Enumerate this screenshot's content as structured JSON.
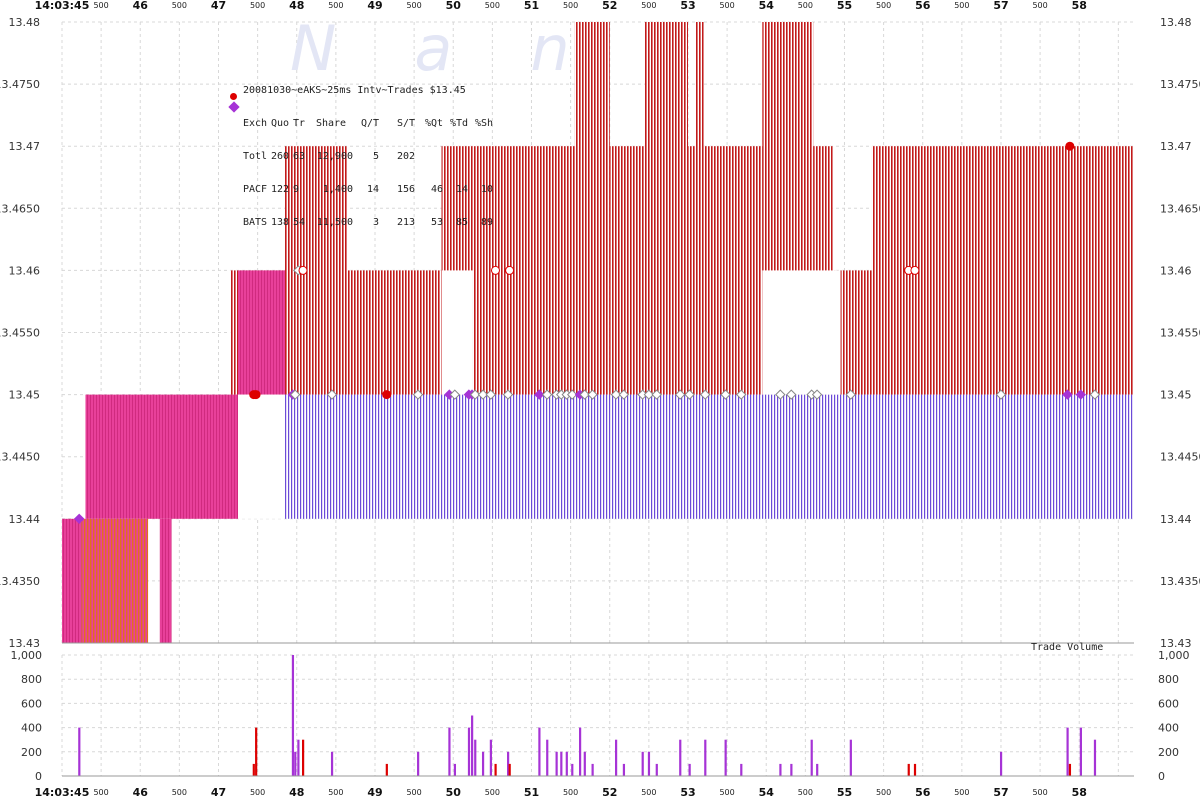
{
  "colors": {
    "pacf": "#dd0000",
    "bats": "#a633d6",
    "nbbo_overlap": "#e0338a",
    "ask_fill": "#c21a1a",
    "bid_fill": "#6b4ad8",
    "grid": "#d8d8d8",
    "watermark": "#e3e6f5"
  },
  "chart_data": [
    {
      "type": "step-area",
      "name": "quote_chart",
      "title": "20081030~eAKS~25ms Intv~Trades $13.45",
      "watermark": "Nanex",
      "ylim": [
        13.43,
        13.48
      ],
      "y_ticks": [
        "13.43",
        "13.4350",
        "13.44",
        "13.4450",
        "13.45",
        "13.4550",
        "13.46",
        "13.4650",
        "13.47",
        "13.4750",
        "13.48"
      ],
      "x_time_start": "14:03:45",
      "x_major_labels": [
        "14:03:45",
        "46",
        "47",
        "48",
        "49",
        "50",
        "51",
        "52",
        "53",
        "54",
        "55",
        "56",
        "57",
        "58"
      ],
      "x_minor_label": "500",
      "xlim_seconds": [
        0,
        13.7
      ],
      "stats_table": {
        "header": [
          "Exch",
          "Quo",
          "Tr",
          "Share",
          "Q/T",
          "S/T",
          "%Qt",
          "%Td",
          "%Sh"
        ],
        "rows": [
          {
            "exch": "Totl",
            "quo": "260",
            "tr": "63",
            "share": "12,900",
            "qt": "5",
            "st": "202",
            "pqt": "",
            "ptd": "",
            "psh": ""
          },
          {
            "exch": "PACF",
            "quo": "122",
            "tr": "9",
            "share": "1,400",
            "qt": "14",
            "st": "156",
            "pqt": "46",
            "ptd": "14",
            "psh": "10"
          },
          {
            "exch": "BATS",
            "quo": "138",
            "tr": "54",
            "share": "11,500",
            "qt": "3",
            "st": "213",
            "pqt": "53",
            "ptd": "85",
            "psh": "89"
          }
        ]
      },
      "ask_segments": [
        {
          "x0": 0.0,
          "x1": 0.25,
          "level": 13.44
        },
        {
          "x0": 0.25,
          "x1": 1.2,
          "level": 13.44
        },
        {
          "x0": 1.2,
          "x1": 1.4,
          "level": 13.44
        },
        {
          "x0": 2.15,
          "x1": 2.85,
          "level": 13.46
        },
        {
          "x0": 2.85,
          "x1": 3.65,
          "level": 13.47
        },
        {
          "x0": 3.65,
          "x1": 4.85,
          "level": 13.46
        },
        {
          "x0": 4.85,
          "x1": 5.25,
          "level": 13.47
        },
        {
          "x0": 5.25,
          "x1": 5.55,
          "level": 13.47
        },
        {
          "x0": 5.55,
          "x1": 6.0,
          "level": 13.47
        },
        {
          "x0": 6.0,
          "x1": 6.55,
          "level": 13.47
        },
        {
          "x0": 6.55,
          "x1": 7.0,
          "level": 13.48
        },
        {
          "x0": 7.0,
          "x1": 7.45,
          "level": 13.47
        },
        {
          "x0": 7.45,
          "x1": 8.0,
          "level": 13.48
        },
        {
          "x0": 8.0,
          "x1": 8.1,
          "level": 13.47
        },
        {
          "x0": 8.1,
          "x1": 8.2,
          "level": 13.48
        },
        {
          "x0": 8.2,
          "x1": 8.95,
          "level": 13.47
        },
        {
          "x0": 8.95,
          "x1": 9.6,
          "level": 13.48
        },
        {
          "x0": 9.6,
          "x1": 9.85,
          "level": 13.47
        },
        {
          "x0": 9.85,
          "x1": 10.35,
          "level": 13.46
        },
        {
          "x0": 10.35,
          "x1": 13.7,
          "level": 13.47
        }
      ],
      "bid_segments": [
        {
          "x0": 0.0,
          "x1": 0.25,
          "level": 13.43
        },
        {
          "x0": 0.25,
          "x1": 1.2,
          "level": 13.43
        },
        {
          "x0": 1.2,
          "x1": 1.4,
          "level": 13.43
        },
        {
          "x0": 2.15,
          "x1": 2.85,
          "level": 13.45
        },
        {
          "x0": 2.85,
          "x1": 13.7,
          "level": 13.44
        }
      ],
      "bid_top_segments": [
        {
          "x0": 0.25,
          "x1": 2.25,
          "level": 13.45
        },
        {
          "x0": 2.85,
          "x1": 13.7,
          "level": 13.45
        }
      ],
      "overlap_regions": [
        {
          "x0": 0.0,
          "x1": 0.25,
          "y0": 13.43,
          "y1": 13.44
        },
        {
          "x0": 0.3,
          "x1": 2.25,
          "y0": 13.44,
          "y1": 13.45
        },
        {
          "x0": 1.25,
          "x1": 1.4,
          "y0": 13.43,
          "y1": 13.44
        },
        {
          "x0": 2.25,
          "x1": 2.85,
          "y0": 13.45,
          "y1": 13.46
        }
      ],
      "ask_gaps": [
        {
          "x0": 4.85,
          "x1": 5.25,
          "y0": 13.45,
          "y1": 13.46
        },
        {
          "x0": 8.95,
          "x1": 9.95,
          "y0": 13.45,
          "y1": 13.46
        },
        {
          "x0": 2.25,
          "x1": 2.85,
          "y0": 13.44,
          "y1": 13.45
        }
      ],
      "trades": [
        {
          "t": 0.22,
          "price": 13.44,
          "exch": "BATS",
          "shares": 400
        },
        {
          "t": 2.45,
          "price": 13.45,
          "exch": "PACF",
          "shares": 100
        },
        {
          "t": 2.48,
          "price": 13.45,
          "exch": "PACF",
          "shares": 400
        },
        {
          "t": 2.95,
          "price": 13.45,
          "exch": "BATS",
          "shares": 1000
        },
        {
          "t": 2.98,
          "price": 13.45,
          "exch": "BATS",
          "shares": 200
        },
        {
          "t": 3.02,
          "price": 13.46,
          "exch": "BATS",
          "shares": 300
        },
        {
          "t": 3.08,
          "price": 13.46,
          "exch": "PACF",
          "shares": 300
        },
        {
          "t": 3.45,
          "price": 13.45,
          "exch": "BATS",
          "shares": 200
        },
        {
          "t": 4.15,
          "price": 13.45,
          "exch": "PACF",
          "shares": 100
        },
        {
          "t": 4.55,
          "price": 13.45,
          "exch": "BATS",
          "shares": 200
        },
        {
          "t": 4.95,
          "price": 13.45,
          "exch": "BATS",
          "shares": 400
        },
        {
          "t": 5.02,
          "price": 13.45,
          "exch": "BATS",
          "shares": 100
        },
        {
          "t": 5.2,
          "price": 13.45,
          "exch": "BATS",
          "shares": 400
        },
        {
          "t": 5.24,
          "price": 13.45,
          "exch": "BATS",
          "shares": 500
        },
        {
          "t": 5.28,
          "price": 13.45,
          "exch": "BATS",
          "shares": 300
        },
        {
          "t": 5.38,
          "price": 13.45,
          "exch": "BATS",
          "shares": 200
        },
        {
          "t": 5.48,
          "price": 13.45,
          "exch": "BATS",
          "shares": 300
        },
        {
          "t": 5.54,
          "price": 13.46,
          "exch": "PACF",
          "shares": 100
        },
        {
          "t": 5.7,
          "price": 13.45,
          "exch": "BATS",
          "shares": 200
        },
        {
          "t": 5.72,
          "price": 13.46,
          "exch": "PACF",
          "shares": 100
        },
        {
          "t": 6.1,
          "price": 13.45,
          "exch": "BATS",
          "shares": 400
        },
        {
          "t": 6.2,
          "price": 13.45,
          "exch": "BATS",
          "shares": 300
        },
        {
          "t": 6.32,
          "price": 13.45,
          "exch": "BATS",
          "shares": 200
        },
        {
          "t": 6.38,
          "price": 13.45,
          "exch": "BATS",
          "shares": 200
        },
        {
          "t": 6.45,
          "price": 13.45,
          "exch": "BATS",
          "shares": 200
        },
        {
          "t": 6.52,
          "price": 13.45,
          "exch": "BATS",
          "shares": 100
        },
        {
          "t": 6.62,
          "price": 13.45,
          "exch": "BATS",
          "shares": 400
        },
        {
          "t": 6.68,
          "price": 13.45,
          "exch": "BATS",
          "shares": 200
        },
        {
          "t": 6.78,
          "price": 13.45,
          "exch": "BATS",
          "shares": 100
        },
        {
          "t": 7.08,
          "price": 13.45,
          "exch": "BATS",
          "shares": 300
        },
        {
          "t": 7.18,
          "price": 13.45,
          "exch": "BATS",
          "shares": 100
        },
        {
          "t": 7.42,
          "price": 13.45,
          "exch": "BATS",
          "shares": 200
        },
        {
          "t": 7.5,
          "price": 13.45,
          "exch": "BATS",
          "shares": 200
        },
        {
          "t": 7.6,
          "price": 13.45,
          "exch": "BATS",
          "shares": 100
        },
        {
          "t": 7.9,
          "price": 13.45,
          "exch": "BATS",
          "shares": 300
        },
        {
          "t": 8.02,
          "price": 13.45,
          "exch": "BATS",
          "shares": 100
        },
        {
          "t": 8.22,
          "price": 13.45,
          "exch": "BATS",
          "shares": 300
        },
        {
          "t": 8.48,
          "price": 13.45,
          "exch": "BATS",
          "shares": 300
        },
        {
          "t": 8.68,
          "price": 13.45,
          "exch": "BATS",
          "shares": 100
        },
        {
          "t": 9.18,
          "price": 13.45,
          "exch": "BATS",
          "shares": 100
        },
        {
          "t": 9.32,
          "price": 13.45,
          "exch": "BATS",
          "shares": 100
        },
        {
          "t": 9.58,
          "price": 13.45,
          "exch": "BATS",
          "shares": 300
        },
        {
          "t": 9.65,
          "price": 13.45,
          "exch": "BATS",
          "shares": 100
        },
        {
          "t": 10.08,
          "price": 13.45,
          "exch": "BATS",
          "shares": 300
        },
        {
          "t": 10.82,
          "price": 13.46,
          "exch": "PACF",
          "shares": 100
        },
        {
          "t": 10.9,
          "price": 13.46,
          "exch": "PACF",
          "shares": 100
        },
        {
          "t": 12.0,
          "price": 13.45,
          "exch": "BATS",
          "shares": 200
        },
        {
          "t": 12.85,
          "price": 13.45,
          "exch": "BATS",
          "shares": 400
        },
        {
          "t": 12.88,
          "price": 13.47,
          "exch": "PACF",
          "shares": 100
        },
        {
          "t": 13.02,
          "price": 13.45,
          "exch": "BATS",
          "shares": 400
        },
        {
          "t": 13.2,
          "price": 13.45,
          "exch": "BATS",
          "shares": 300
        }
      ]
    },
    {
      "type": "bar",
      "name": "volume_chart",
      "title": "Trade Volume",
      "ylim": [
        0,
        1000
      ],
      "y_ticks": [
        "0",
        "200",
        "400",
        "600",
        "800",
        "1,000"
      ]
    }
  ]
}
